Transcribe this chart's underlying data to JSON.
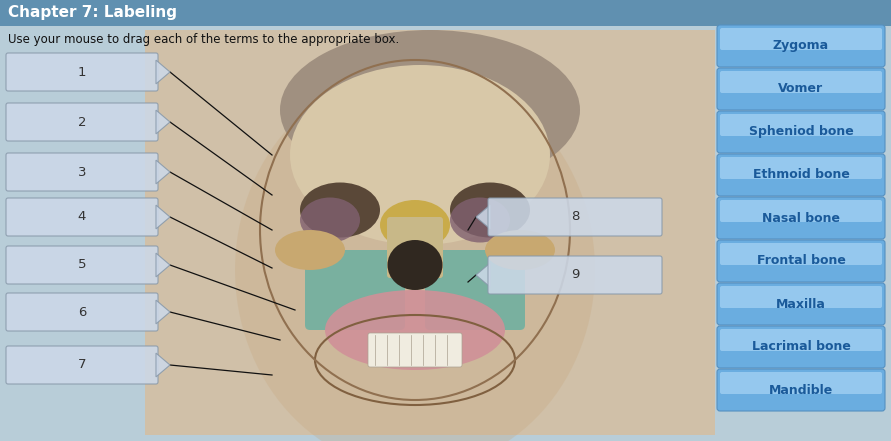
{
  "title": "Chapter 7: Labeling",
  "subtitle": "Use your mouse to drag each of the terms to the appropriate box.",
  "bg_color": "#b8cdd8",
  "header_bg": "#6090b0",
  "header_text_color": "#ffffff",
  "term_buttons": [
    "Zygoma",
    "Vomer",
    "Spheniod bone",
    "Ethmoid bone",
    "Nasal bone",
    "Frontal bone",
    "Maxilla",
    "Lacrimal bone",
    "Mandible"
  ],
  "term_btn_color": "#6aade0",
  "term_btn_light": "#a8d4f4",
  "term_text_color": "#1a5a9a",
  "label_box_bg": "#ccd8e8",
  "label_box_edge": "#8899aa",
  "label_num_color": "#333333",
  "line_color": "#111111",
  "skull_bg": "#c8b090",
  "skull_shadow": "#a09070",
  "forehead_color": "#d4c0a0",
  "eye_socket_color": "#7a6858",
  "nose_color": "#c0a080",
  "cheek_color": "#d4c0a0",
  "teeth_color": "#f0ece0",
  "jaw_color": "#c8b090",
  "purple_region": "#806070",
  "yellow_region": "#c8a840",
  "teal_region": "#70b0a0",
  "pink_region": "#d09098"
}
